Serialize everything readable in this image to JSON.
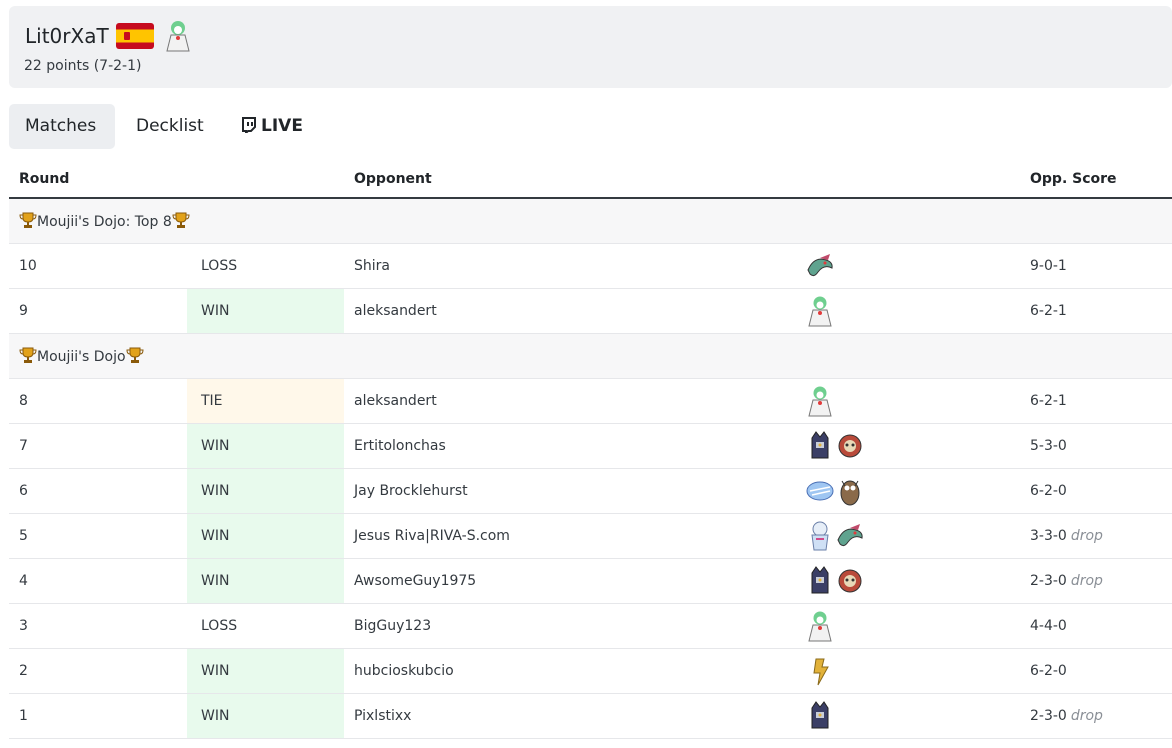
{
  "player": {
    "name": "Lit0rXaT",
    "flag_icon": "spain-flag-icon",
    "sprite_icon": "gardevoir-sprite-icon",
    "record": "22 points (7-2-1)"
  },
  "tabs": [
    {
      "label": "Matches",
      "active": true
    },
    {
      "label": "Decklist",
      "active": false
    },
    {
      "label": "LIVE",
      "active": false,
      "icon": "twitch-icon"
    }
  ],
  "table": {
    "headers": {
      "round": "Round",
      "opponent": "Opponent",
      "score": "Opp. Score"
    },
    "sections": [
      {
        "title": "Moujii's Dojo: Top 8",
        "rows": [
          {
            "round": "10",
            "result": "LOSS",
            "opponent": "Shira",
            "sprites": [
              "dragapult-sprite-icon"
            ],
            "score": "9-0-1",
            "drop": ""
          },
          {
            "round": "9",
            "result": "WIN",
            "opponent": "aleksandert",
            "sprites": [
              "gardevoir-sprite-icon"
            ],
            "score": "6-2-1",
            "drop": ""
          }
        ]
      },
      {
        "title": "Moujii's Dojo",
        "rows": [
          {
            "round": "8",
            "result": "TIE",
            "opponent": "aleksandert",
            "sprites": [
              "gardevoir-sprite-icon"
            ],
            "score": "6-2-1",
            "drop": ""
          },
          {
            "round": "7",
            "result": "WIN",
            "opponent": "Ertitolonchas",
            "sprites": [
              "kingambit-sprite-icon",
              "munkidori-sprite-icon"
            ],
            "score": "5-3-0",
            "drop": ""
          },
          {
            "round": "6",
            "result": "WIN",
            "opponent": "Jay Brocklehurst",
            "sprites": [
              "lugia-sprite-icon",
              "noctowl-sprite-icon"
            ],
            "score": "6-2-0",
            "drop": ""
          },
          {
            "round": "5",
            "result": "WIN",
            "opponent": "Jesus Riva|RIVA-S.com",
            "sprites": [
              "froslass-sprite-icon",
              "dragapult-sprite-icon"
            ],
            "score": "3-3-0",
            "drop": "drop"
          },
          {
            "round": "4",
            "result": "WIN",
            "opponent": "AwsomeGuy1975",
            "sprites": [
              "kingambit-sprite-icon",
              "munkidori-sprite-icon"
            ],
            "score": "2-3-0",
            "drop": "drop"
          },
          {
            "round": "3",
            "result": "LOSS",
            "opponent": "BigGuy123",
            "sprites": [
              "gardevoir-sprite-icon"
            ],
            "score": "4-4-0",
            "drop": ""
          },
          {
            "round": "2",
            "result": "WIN",
            "opponent": "hubcioskubcio",
            "sprites": [
              "raging-bolt-sprite-icon"
            ],
            "score": "6-2-0",
            "drop": ""
          },
          {
            "round": "1",
            "result": "WIN",
            "opponent": "Pixlstixx",
            "sprites": [
              "kingambit-sprite-icon"
            ],
            "score": "2-3-0",
            "drop": "drop"
          }
        ]
      }
    ]
  },
  "colors": {
    "win_bg": "#e8faed",
    "tie_bg": "#fff8ea",
    "section_bg": "#f7f7f8",
    "header_bg": "#f0f1f3"
  }
}
